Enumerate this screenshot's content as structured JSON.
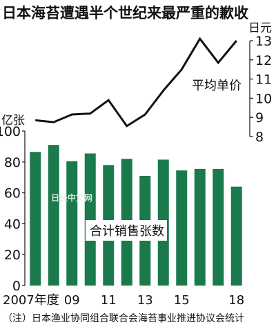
{
  "title": "日本海苔遭遇半个世纪来最严重的歉收",
  "footnote": "（注）日本渔业协同组合联合会海苔事业推进协议会统计",
  "watermark": "日经中文网",
  "colors": {
    "bar": "#1b7a4b",
    "line": "#111111",
    "text": "#111111"
  },
  "chart_data": {
    "type": "bar",
    "categories": [
      "2007",
      "2008",
      "2009",
      "2010",
      "2011",
      "2012",
      "2013",
      "2014",
      "2015",
      "2016",
      "2017",
      "2018"
    ],
    "x_tick_labels": {
      "2007": "2007年度",
      "2009": "09",
      "2011": "11",
      "2013": "13",
      "2015": "15",
      "2018": "18"
    },
    "series": [
      {
        "name": "合计销售张数",
        "type": "bar",
        "axis": "left",
        "values": [
          86.5,
          91,
          80.5,
          85.5,
          78,
          82,
          71,
          81.5,
          74.5,
          75.5,
          75.5,
          64
        ]
      },
      {
        "name": "平均单价",
        "type": "line",
        "axis": "right",
        "values": [
          8.85,
          8.75,
          9.15,
          9.2,
          9.9,
          8.55,
          9.15,
          10.4,
          11.5,
          13.1,
          11.85,
          13.0
        ]
      }
    ],
    "left_axis": {
      "unit": "亿张",
      "ylim": [
        0,
        100
      ],
      "ticks": [
        0,
        20,
        40,
        60,
        80,
        100
      ]
    },
    "right_axis": {
      "unit": "日元",
      "ylim": [
        8,
        13
      ],
      "ticks": [
        8,
        9,
        10,
        11,
        12,
        13
      ]
    },
    "annotations": [
      "平均单价",
      "合计销售张数"
    ]
  }
}
